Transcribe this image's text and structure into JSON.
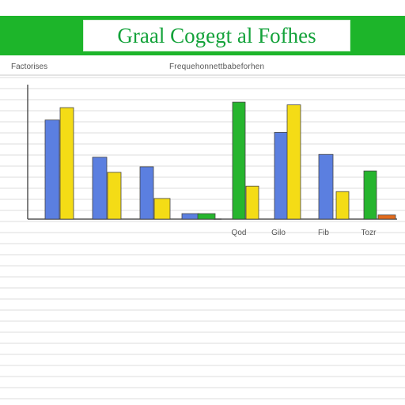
{
  "header": {
    "title": "Graal Cogegt al Fofhes"
  },
  "labels": {
    "left": "Factorises",
    "right": "Frequehonnettbabeforhen"
  },
  "chart_data": {
    "type": "bar",
    "categories": [
      "Qod",
      "Gilo",
      "Fib",
      "Tozr"
    ],
    "ylim": [
      0,
      100
    ],
    "grid": true,
    "colors": {
      "blue": "#5b7fe0",
      "yellow": "#f4dc16",
      "green": "#26b52e",
      "orange": "#e06a1c"
    },
    "bars": [
      {
        "value": 72,
        "color": "blue"
      },
      {
        "value": 81,
        "color": "yellow"
      },
      {
        "value": 45,
        "color": "blue"
      },
      {
        "value": 34,
        "color": "yellow"
      },
      {
        "value": 38,
        "color": "blue"
      },
      {
        "value": 15,
        "color": "yellow"
      },
      {
        "value": 4,
        "color": "blue"
      },
      {
        "value": 4,
        "color": "green"
      },
      {
        "value": 85,
        "color": "green"
      },
      {
        "value": 24,
        "color": "yellow"
      },
      {
        "value": 63,
        "color": "blue"
      },
      {
        "value": 83,
        "color": "yellow"
      },
      {
        "value": 47,
        "color": "blue"
      },
      {
        "value": 20,
        "color": "yellow"
      },
      {
        "value": 35,
        "color": "green"
      },
      {
        "value": 3,
        "color": "orange"
      }
    ]
  }
}
